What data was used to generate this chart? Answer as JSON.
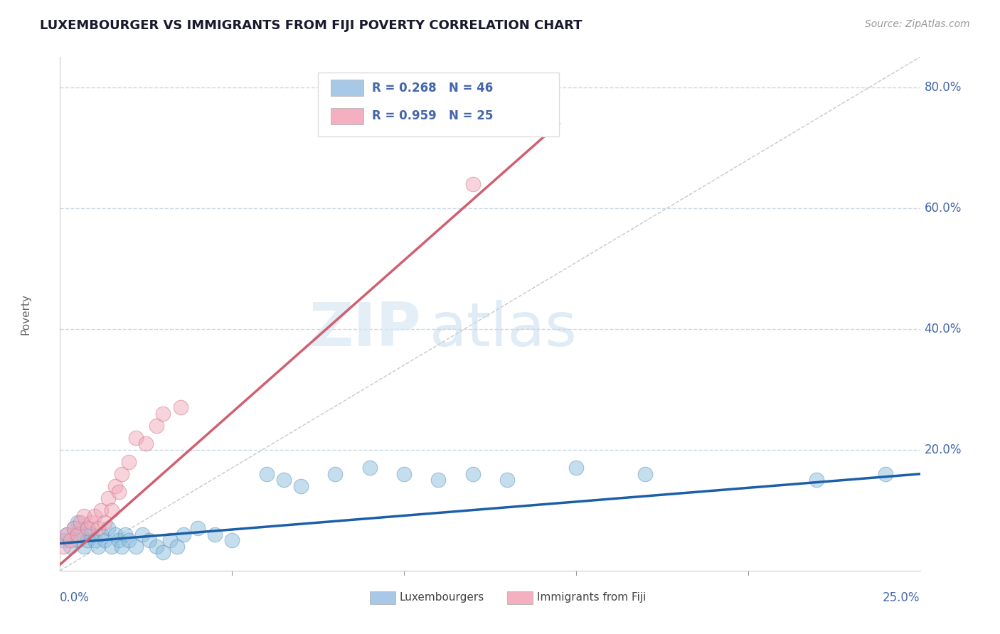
{
  "title": "LUXEMBOURGER VS IMMIGRANTS FROM FIJI POVERTY CORRELATION CHART",
  "source": "Source: ZipAtlas.com",
  "ylabel_label": "Poverty",
  "xmin": 0.0,
  "xmax": 0.25,
  "ymin": 0.0,
  "ymax": 0.85,
  "blue_scatter_x": [
    0.001,
    0.002,
    0.003,
    0.004,
    0.005,
    0.005,
    0.006,
    0.007,
    0.008,
    0.008,
    0.009,
    0.01,
    0.011,
    0.012,
    0.013,
    0.014,
    0.015,
    0.016,
    0.017,
    0.018,
    0.019,
    0.02,
    0.022,
    0.024,
    0.026,
    0.028,
    0.03,
    0.032,
    0.034,
    0.036,
    0.04,
    0.045,
    0.05,
    0.06,
    0.065,
    0.07,
    0.08,
    0.09,
    0.1,
    0.11,
    0.12,
    0.13,
    0.15,
    0.17,
    0.22,
    0.24
  ],
  "blue_scatter_y": [
    0.05,
    0.06,
    0.04,
    0.07,
    0.05,
    0.08,
    0.06,
    0.04,
    0.07,
    0.05,
    0.06,
    0.05,
    0.04,
    0.06,
    0.05,
    0.07,
    0.04,
    0.06,
    0.05,
    0.04,
    0.06,
    0.05,
    0.04,
    0.06,
    0.05,
    0.04,
    0.03,
    0.05,
    0.04,
    0.06,
    0.07,
    0.06,
    0.05,
    0.16,
    0.15,
    0.14,
    0.16,
    0.17,
    0.16,
    0.15,
    0.16,
    0.15,
    0.17,
    0.16,
    0.15,
    0.16
  ],
  "pink_scatter_x": [
    0.001,
    0.002,
    0.003,
    0.004,
    0.005,
    0.006,
    0.007,
    0.008,
    0.009,
    0.01,
    0.011,
    0.012,
    0.013,
    0.014,
    0.015,
    0.016,
    0.017,
    0.018,
    0.02,
    0.022,
    0.025,
    0.028,
    0.03,
    0.035,
    0.12
  ],
  "pink_scatter_y": [
    0.04,
    0.06,
    0.05,
    0.07,
    0.06,
    0.08,
    0.09,
    0.07,
    0.08,
    0.09,
    0.07,
    0.1,
    0.08,
    0.12,
    0.1,
    0.14,
    0.13,
    0.16,
    0.18,
    0.22,
    0.21,
    0.24,
    0.26,
    0.27,
    0.64
  ],
  "blue_line_x": [
    0.0,
    0.25
  ],
  "blue_line_y": [
    0.045,
    0.16
  ],
  "pink_line_x": [
    0.0,
    0.145
  ],
  "pink_line_y": [
    0.01,
    0.74
  ],
  "diag_line_x": [
    0.0,
    0.25
  ],
  "diag_line_y": [
    0.0,
    0.85
  ],
  "title_color": "#1a1a2e",
  "blue_color": "#8bbfdd",
  "pink_color": "#f0a8b8",
  "trend_blue": "#1a5fa8",
  "trend_pink": "#d06070",
  "axis_color": "#4466aa",
  "grid_color": "#c8d8e8",
  "watermark_zip": "ZIP",
  "watermark_atlas": "atlas"
}
